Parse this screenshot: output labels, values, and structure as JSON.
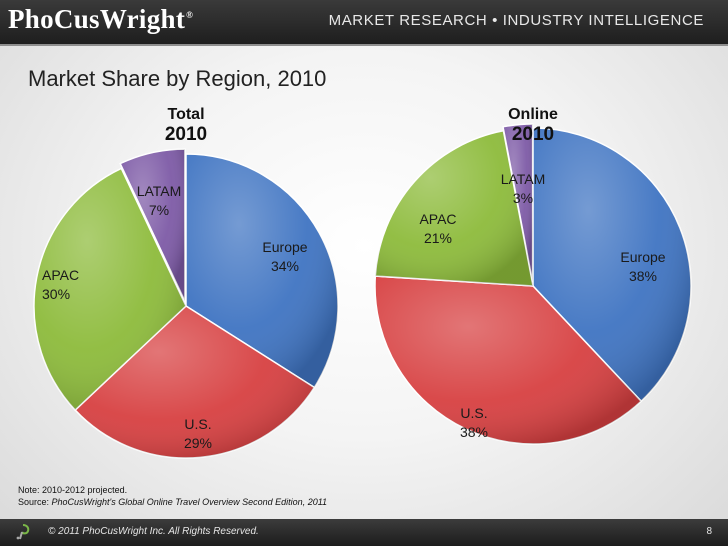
{
  "header": {
    "logo_text": "PhoCusWright",
    "logo_mark": "®",
    "tagline": "MARKET RESEARCH • INDUSTRY INTELLIGENCE"
  },
  "slide": {
    "title": "Market Share by Region, 2010"
  },
  "chart_data": [
    {
      "type": "pie",
      "title": "Total",
      "subtitle": "2010",
      "slices": [
        {
          "label": "Europe",
          "value": 34,
          "display": "34%",
          "color": "#3f74c2"
        },
        {
          "label": "U.S.",
          "value": 29,
          "display": "29%",
          "color": "#d74041"
        },
        {
          "label": "APAC",
          "value": 30,
          "display": "30%",
          "color": "#8dbb3b"
        },
        {
          "label": "LATAM",
          "value": 7,
          "display": "7%",
          "color": "#7d5aa6"
        }
      ]
    },
    {
      "type": "pie",
      "title": "Online",
      "subtitle": "2010",
      "slices": [
        {
          "label": "Europe",
          "value": 38,
          "display": "38%",
          "color": "#3f74c2"
        },
        {
          "label": "U.S.",
          "value": 38,
          "display": "38%",
          "color": "#d74041"
        },
        {
          "label": "APAC",
          "value": 21,
          "display": "21%",
          "color": "#8dbb3b"
        },
        {
          "label": "LATAM",
          "value": 3,
          "display": "3%",
          "color": "#7d5aa6"
        }
      ]
    }
  ],
  "note": {
    "line1": "Note: 2010-2012 projected.",
    "source_prefix": "Source: ",
    "source_italic": "PhoCusWright's Global Online Travel Overview Second Edition, 2011"
  },
  "footer": {
    "copyright": "© 2011 PhoCusWright Inc.  All Rights Reserved.",
    "page_number": "8"
  }
}
